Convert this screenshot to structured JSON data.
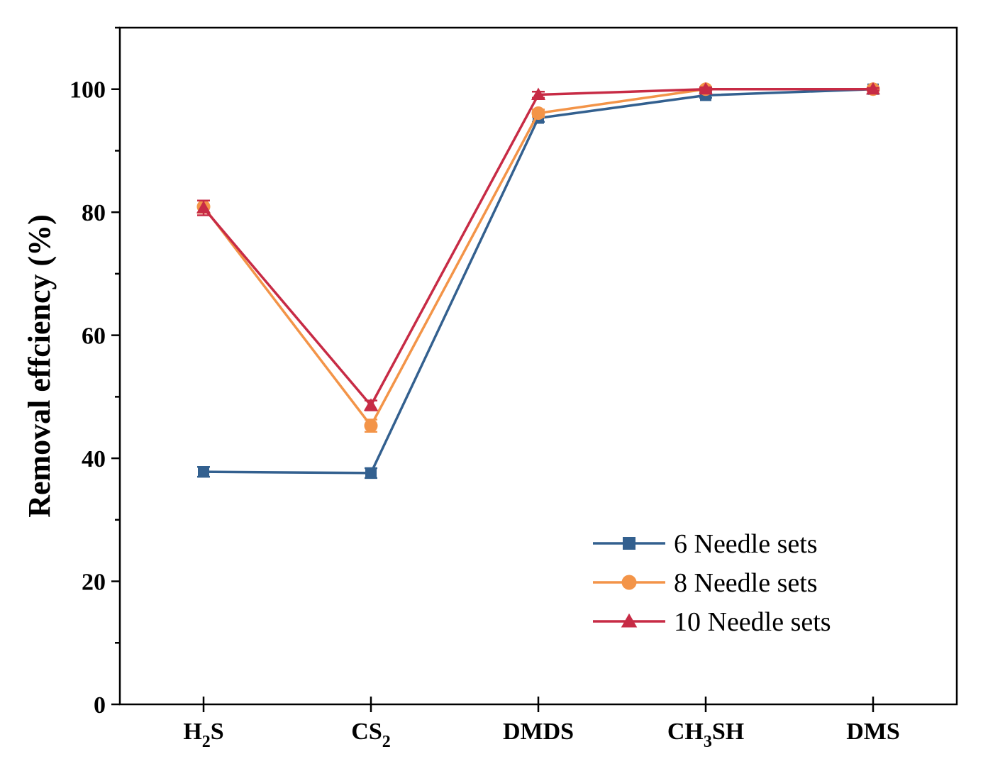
{
  "chart_data": {
    "type": "line",
    "title": "",
    "xlabel": "",
    "ylabel": "Removal effciency (%)",
    "ylim": [
      0,
      110
    ],
    "yticks": [
      0,
      20,
      40,
      60,
      80,
      100
    ],
    "yminor_step": 10,
    "categories": [
      {
        "base": "H",
        "sub": "2",
        "tail": "S"
      },
      {
        "base": "CS",
        "sub": "2",
        "tail": ""
      },
      {
        "base": "DMDS",
        "sub": "",
        "tail": ""
      },
      {
        "base": "CH",
        "sub": "3",
        "tail": "SH"
      },
      {
        "base": "DMS",
        "sub": "",
        "tail": ""
      }
    ],
    "series": [
      {
        "name": "6 Needle sets",
        "color": "#33608f",
        "marker": "square",
        "values": [
          37.8,
          37.6,
          95.3,
          99.0,
          100.0
        ],
        "errors": [
          0.8,
          0.8,
          0.6,
          0.4,
          0.2
        ]
      },
      {
        "name": "8 Needle sets",
        "color": "#f39448",
        "marker": "circle",
        "values": [
          80.9,
          45.3,
          96.1,
          100.0,
          100.0
        ],
        "errors": [
          1.0,
          1.0,
          0.6,
          0.3,
          0.2
        ]
      },
      {
        "name": "10 Needle sets",
        "color": "#c72b45",
        "marker": "triangle",
        "values": [
          80.7,
          48.6,
          99.1,
          100.0,
          100.0
        ],
        "errors": [
          1.2,
          0.8,
          0.5,
          0.3,
          0.2
        ]
      }
    ],
    "legend_position": "bottom-right",
    "grid": false
  }
}
